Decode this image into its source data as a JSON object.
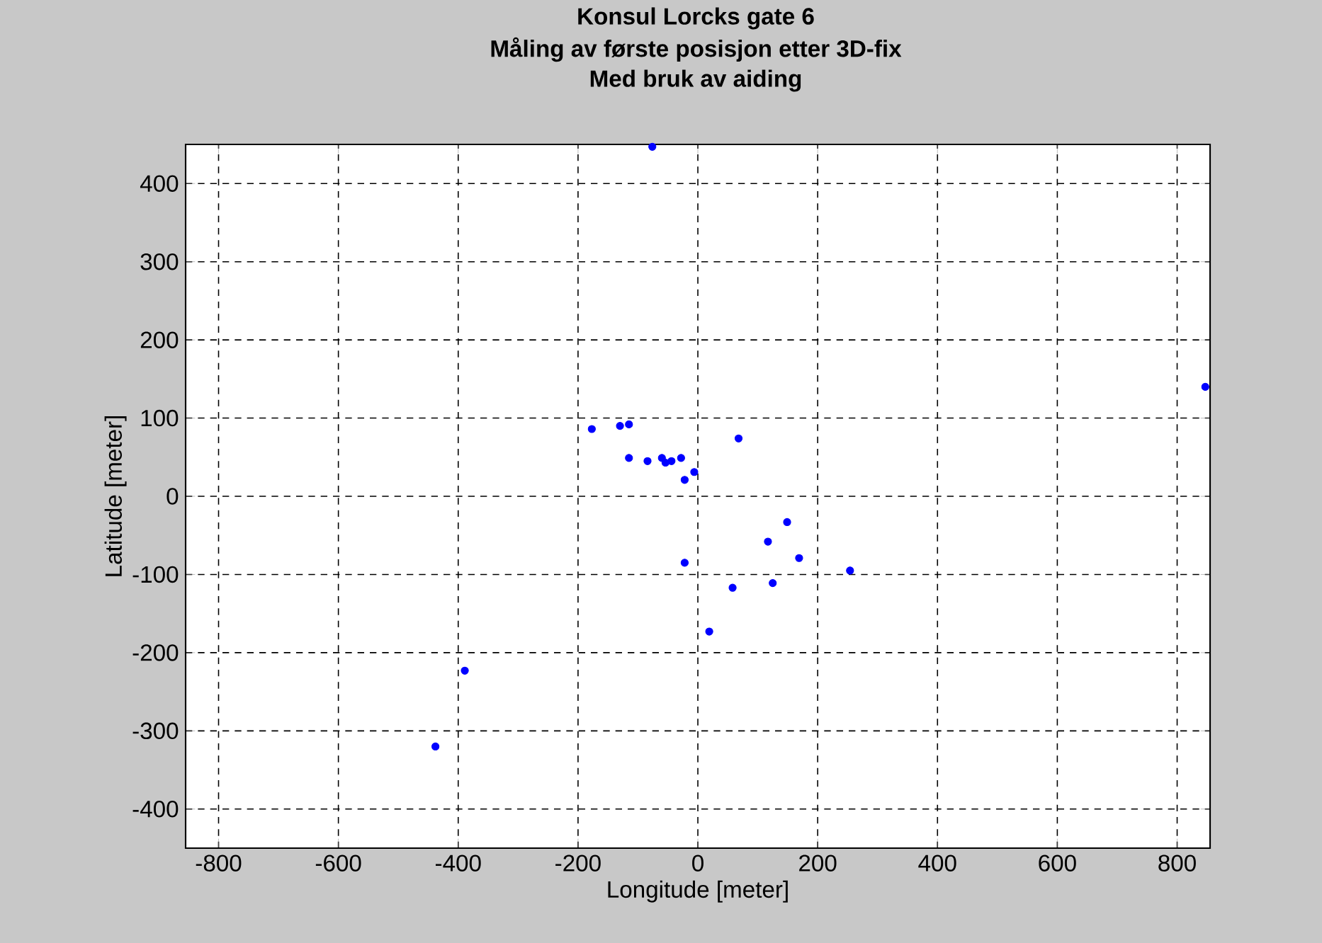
{
  "chart_data": {
    "type": "scatter",
    "title": "Konsul Lorcks gate 6",
    "subtitle": "Måling av første posisjon etter 3D-fix",
    "annotations": [
      "Med bruk av aiding"
    ],
    "xlabel": "Longitude [meter]",
    "ylabel": "Latitude [meter]",
    "x": [
      -76,
      -177,
      -130,
      -115,
      -115,
      -84,
      -60,
      -54,
      -44,
      -28,
      -22,
      -6,
      847,
      68,
      149,
      117,
      169,
      254,
      125,
      58,
      -22,
      19,
      -389,
      -438
    ],
    "series": [
      {
        "color": "#0000ff",
        "values": [
          447,
          86,
          90,
          92,
          49,
          45,
          49,
          43,
          45,
          49,
          21,
          31,
          140,
          74,
          -33,
          -58,
          -79,
          -95,
          -111,
          -117,
          -85,
          -173,
          -223,
          -320
        ]
      }
    ],
    "xlim": [
      -855,
      855
    ],
    "ylim": [
      -450,
      450
    ],
    "xticks": [
      -800,
      -600,
      -400,
      -200,
      0,
      200,
      400,
      600,
      800
    ],
    "yticks": [
      -400,
      -300,
      -200,
      -100,
      0,
      100,
      200,
      300,
      400
    ],
    "grid": true,
    "marker": "circle"
  }
}
